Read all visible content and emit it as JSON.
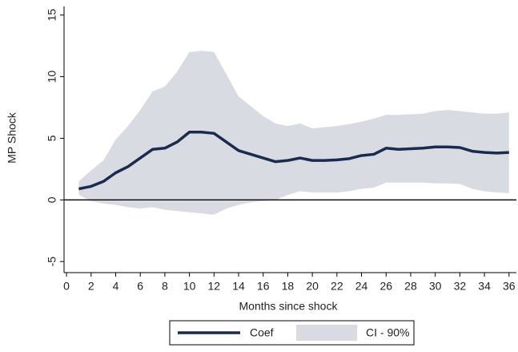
{
  "chart_data": {
    "type": "line-band",
    "x_label": "Months since shock",
    "y_label": "MP Shock",
    "x": [
      1,
      2,
      3,
      4,
      5,
      6,
      7,
      8,
      9,
      10,
      11,
      12,
      13,
      14,
      15,
      16,
      17,
      18,
      19,
      20,
      21,
      22,
      23,
      24,
      25,
      26,
      27,
      28,
      29,
      30,
      31,
      32,
      33,
      34,
      35,
      36
    ],
    "series": [
      {
        "name": "Coef",
        "color": "#1a2b4f",
        "values": [
          0.9,
          1.1,
          1.5,
          2.2,
          2.7,
          3.4,
          4.1,
          4.2,
          4.7,
          5.5,
          5.5,
          5.4,
          4.7,
          4.0,
          3.7,
          3.4,
          3.1,
          3.2,
          3.4,
          3.2,
          3.2,
          3.25,
          3.35,
          3.6,
          3.7,
          4.2,
          4.1,
          4.15,
          4.2,
          4.3,
          4.3,
          4.25,
          3.95,
          3.85,
          3.8,
          3.85
        ]
      },
      {
        "name": "CI - 90%",
        "color": "#d9dbe3",
        "upper": [
          1.5,
          2.4,
          3.2,
          4.9,
          6.0,
          7.3,
          8.8,
          9.2,
          10.4,
          12.0,
          12.1,
          12.0,
          10.2,
          8.4,
          7.6,
          6.8,
          6.2,
          6.0,
          6.2,
          5.8,
          5.9,
          6.0,
          6.15,
          6.35,
          6.6,
          6.9,
          6.9,
          6.95,
          7.0,
          7.2,
          7.3,
          7.2,
          7.1,
          7.0,
          7.0,
          7.1
        ],
        "lower": [
          0.4,
          -0.1,
          -0.3,
          -0.4,
          -0.6,
          -0.7,
          -0.6,
          -0.8,
          -0.9,
          -1.0,
          -1.1,
          -1.2,
          -0.7,
          -0.4,
          -0.2,
          -0.1,
          0.0,
          0.4,
          0.7,
          0.6,
          0.6,
          0.6,
          0.7,
          0.9,
          1.0,
          1.4,
          1.4,
          1.4,
          1.4,
          1.35,
          1.35,
          1.3,
          0.9,
          0.7,
          0.6,
          0.55
        ]
      }
    ],
    "xlim": [
      -0.2,
      36.6
    ],
    "xticks": [
      0,
      2,
      4,
      6,
      8,
      10,
      12,
      14,
      16,
      18,
      20,
      22,
      24,
      26,
      28,
      30,
      32,
      34,
      36
    ],
    "ylim": [
      -5.9,
      15.7
    ],
    "yticks": [
      -5,
      0,
      5,
      10,
      15
    ],
    "zero_line": 0,
    "grid": false,
    "legend": "bottom"
  }
}
